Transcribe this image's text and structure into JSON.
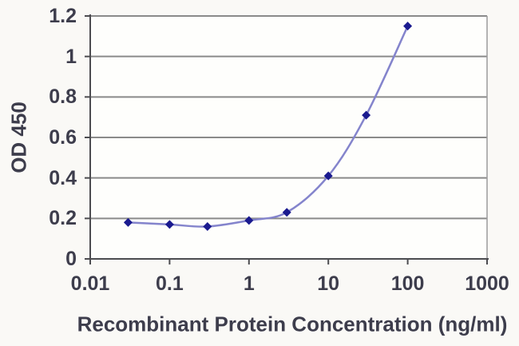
{
  "chart_data": {
    "type": "line",
    "title": "",
    "xlabel": "Recombinant Protein Concentration (ng/ml)",
    "ylabel": "OD 450",
    "x_scale": "log",
    "xlim": [
      0.01,
      1000
    ],
    "ylim": [
      0,
      1.2
    ],
    "xticks": {
      "values": [
        0.01,
        0.1,
        1,
        10,
        100,
        1000
      ],
      "labels": [
        "0.01",
        "0.1",
        "1",
        "10",
        "100",
        "1000"
      ]
    },
    "yticks": {
      "values": [
        0,
        0.2,
        0.4,
        0.6,
        0.8,
        1,
        1.2
      ],
      "labels": [
        "0",
        "0.2",
        "0.4",
        "0.6",
        "0.8",
        "1",
        "1.2"
      ]
    },
    "series": [
      {
        "name": "OD 450",
        "x": [
          0.03,
          0.1,
          0.3,
          1,
          3,
          10,
          30,
          100
        ],
        "y": [
          0.18,
          0.17,
          0.16,
          0.19,
          0.23,
          0.41,
          0.71,
          1.15
        ]
      }
    ],
    "grid": "horizontal",
    "legend": "none",
    "marker": "diamond",
    "line_style": "smooth"
  },
  "colors": {
    "background": "#faf9f6",
    "plot_background": "#fefefc",
    "gridline": "#8a8a8a",
    "axis": "#4c4c50",
    "plot_border": "#9b9b9b",
    "text": "#3d3d4c",
    "line": "#8484cc",
    "marker": "#1a1a8f"
  }
}
